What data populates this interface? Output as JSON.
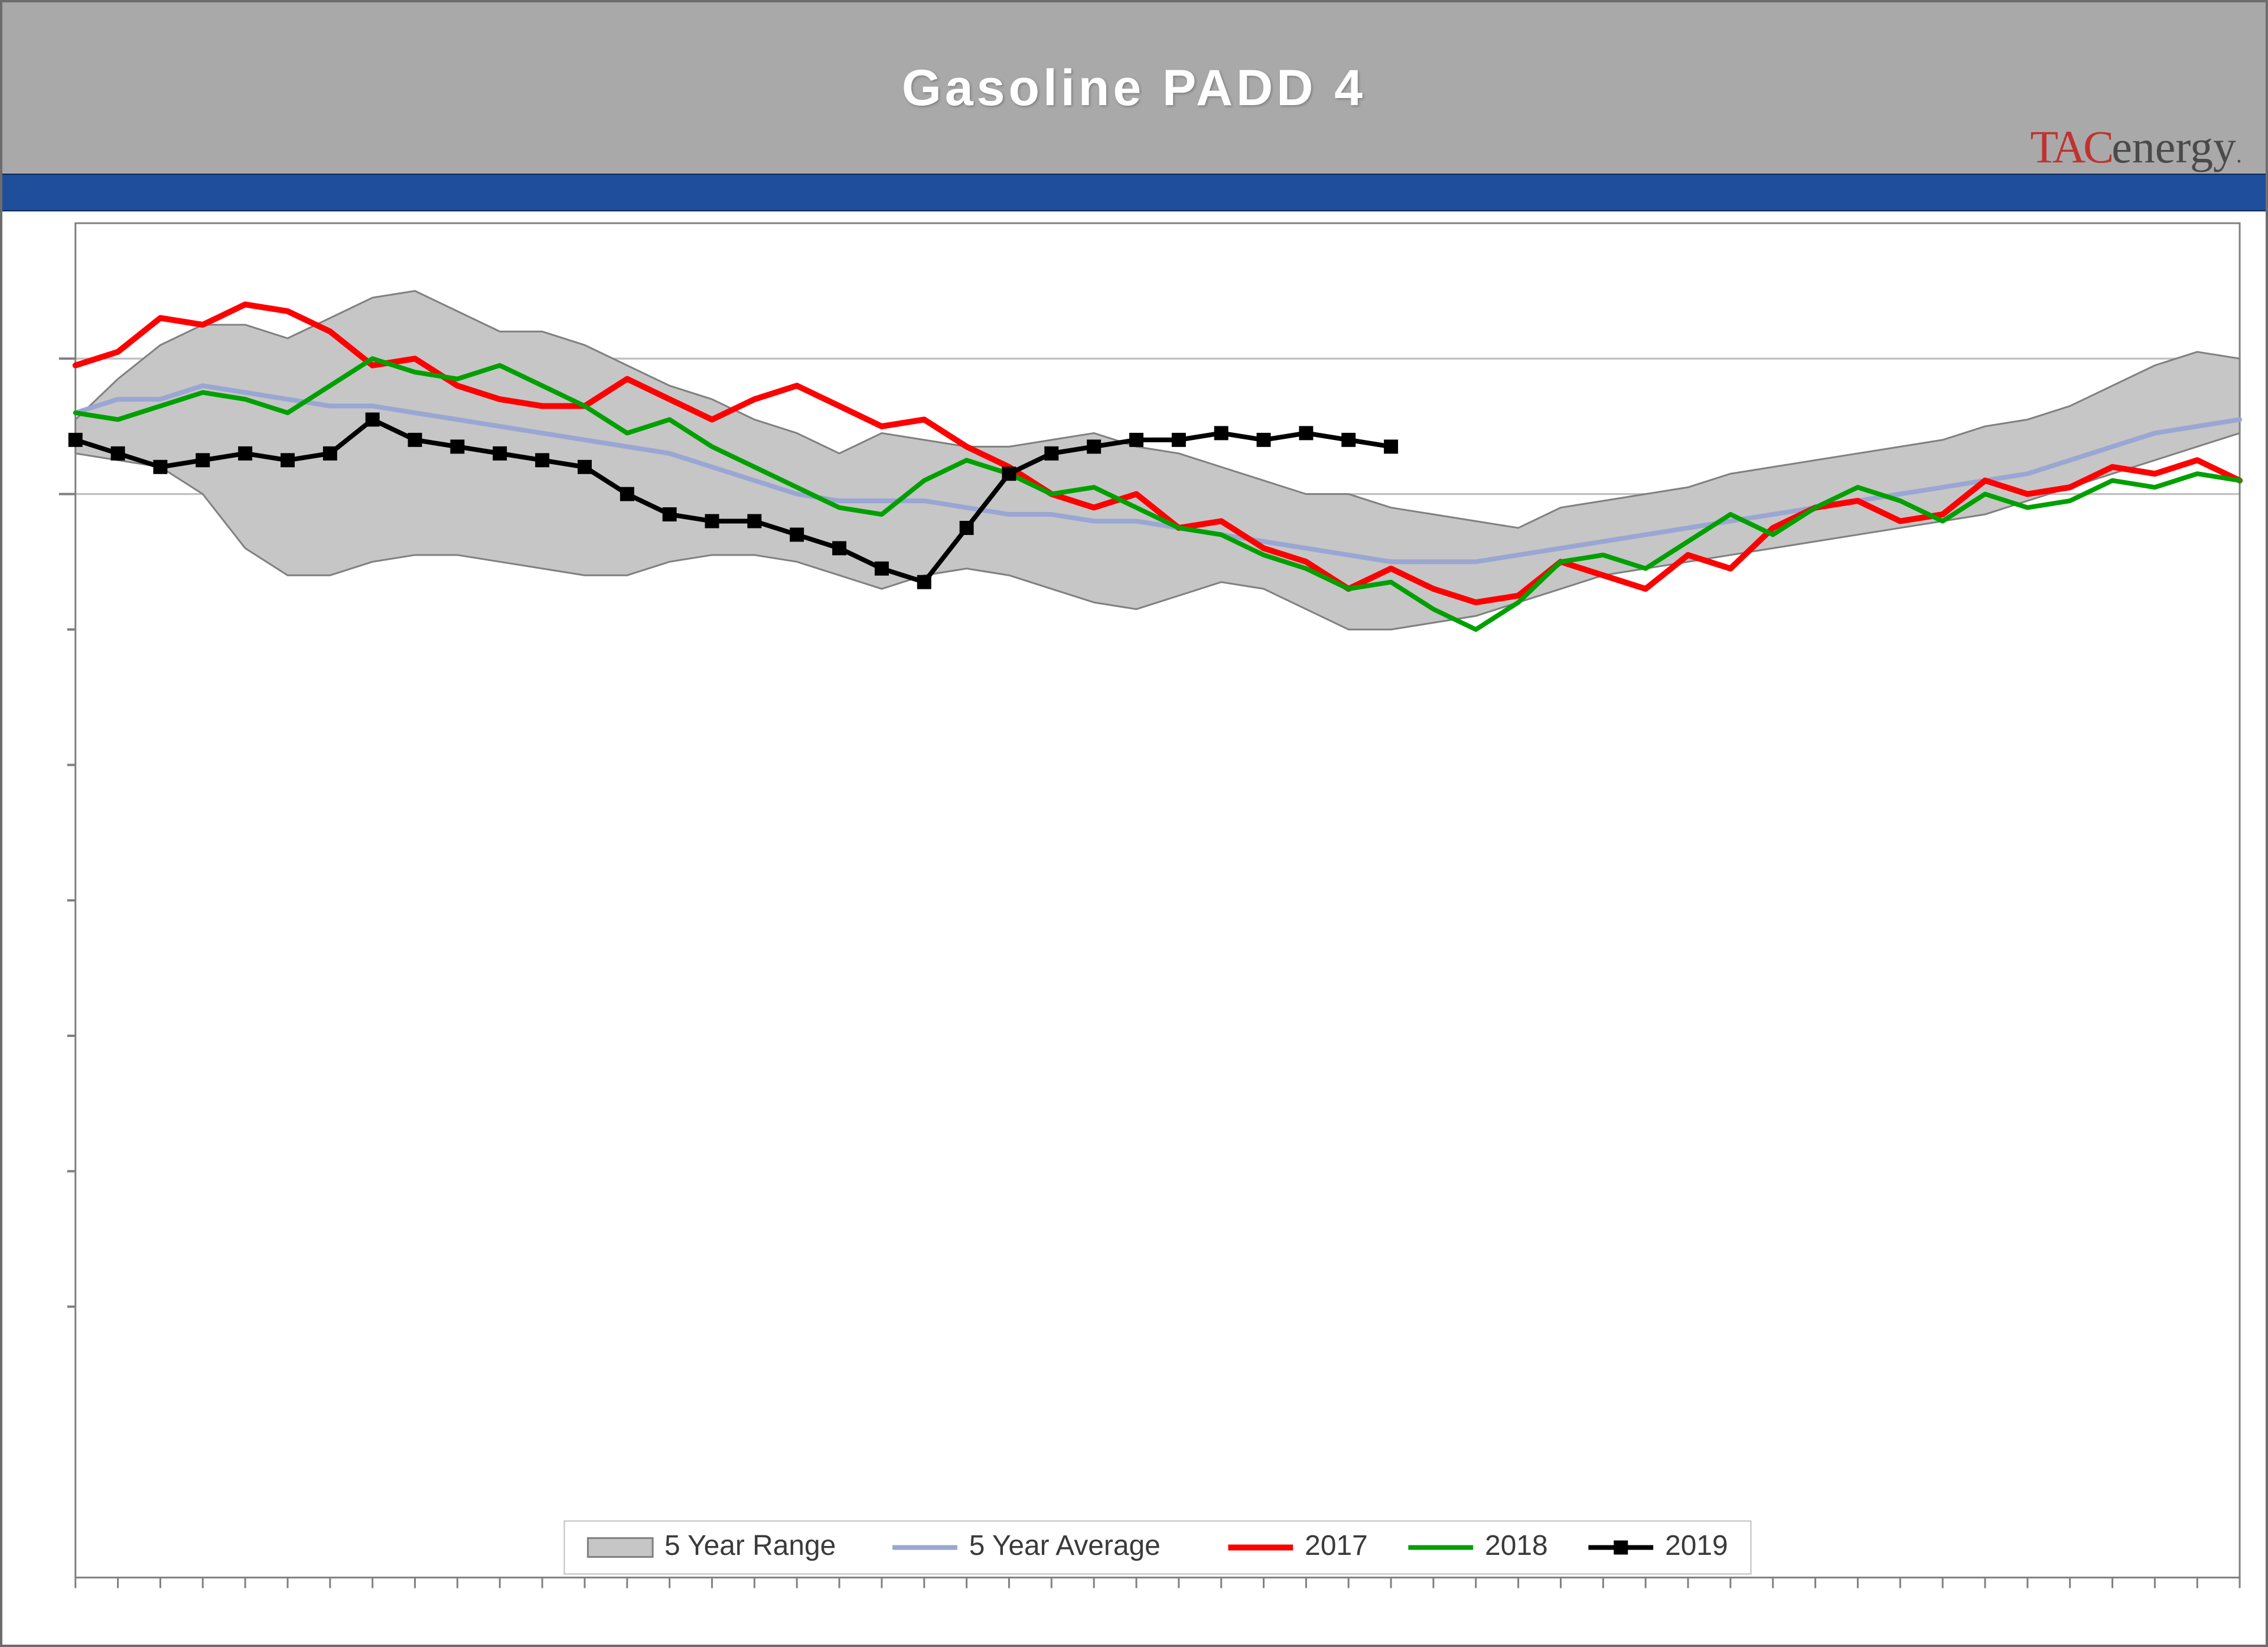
{
  "title": "Gasoline PADD 4",
  "brand": {
    "tac": "TAC",
    "energy": "energy"
  },
  "chart": {
    "type": "line",
    "x_count": 52,
    "ylim": [
      0,
      10
    ],
    "gridlines_y": [
      2,
      3,
      4,
      5,
      6,
      7,
      8,
      9
    ],
    "major_gridlines_y": [
      8,
      9
    ],
    "background_color": "#ffffff",
    "grid_color": "#bfbfbf",
    "major_grid_color": "#bfbfbf",
    "axis_color": "#808080",
    "tick_color": "#808080",
    "tick_len_major": 28,
    "tick_len_minor": 14,
    "range": {
      "name": "5 Year Range",
      "fill": "#c6c6c6",
      "stroke": "#808080",
      "stroke_width": 3,
      "upper": [
        8.55,
        8.85,
        9.1,
        9.25,
        9.25,
        9.15,
        9.3,
        9.45,
        9.5,
        9.35,
        9.2,
        9.2,
        9.1,
        8.95,
        8.8,
        8.7,
        8.55,
        8.45,
        8.3,
        8.45,
        8.4,
        8.35,
        8.35,
        8.4,
        8.45,
        8.35,
        8.3,
        8.2,
        8.1,
        8.0,
        8.0,
        7.9,
        7.85,
        7.8,
        7.75,
        7.9,
        7.95,
        8.0,
        8.05,
        8.15,
        8.2,
        8.25,
        8.3,
        8.35,
        8.4,
        8.5,
        8.55,
        8.65,
        8.8,
        8.95,
        9.05,
        9.0
      ],
      "lower": [
        8.3,
        8.25,
        8.2,
        8.0,
        7.6,
        7.4,
        7.4,
        7.5,
        7.55,
        7.55,
        7.5,
        7.45,
        7.4,
        7.4,
        7.5,
        7.55,
        7.55,
        7.5,
        7.4,
        7.3,
        7.4,
        7.45,
        7.4,
        7.3,
        7.2,
        7.15,
        7.25,
        7.35,
        7.3,
        7.15,
        7.0,
        7.0,
        7.05,
        7.1,
        7.2,
        7.3,
        7.4,
        7.45,
        7.5,
        7.55,
        7.6,
        7.65,
        7.7,
        7.75,
        7.8,
        7.85,
        7.95,
        8.05,
        8.15,
        8.25,
        8.35,
        8.45
      ]
    },
    "series": [
      {
        "name": "5 Year Average",
        "color": "#9aa6d3",
        "width": 8,
        "marker": null,
        "values": [
          8.6,
          8.7,
          8.7,
          8.8,
          8.75,
          8.7,
          8.65,
          8.65,
          8.6,
          8.55,
          8.5,
          8.45,
          8.4,
          8.35,
          8.3,
          8.2,
          8.1,
          8.0,
          7.95,
          7.95,
          7.95,
          7.9,
          7.85,
          7.85,
          7.8,
          7.8,
          7.75,
          7.7,
          7.65,
          7.6,
          7.55,
          7.5,
          7.5,
          7.5,
          7.55,
          7.6,
          7.65,
          7.7,
          7.75,
          7.8,
          7.85,
          7.9,
          7.95,
          8.0,
          8.05,
          8.1,
          8.15,
          8.25,
          8.35,
          8.45,
          8.5,
          8.55
        ]
      },
      {
        "name": "2017",
        "color": "#ff0000",
        "width": 10,
        "marker": null,
        "values": [
          8.95,
          9.05,
          9.3,
          9.25,
          9.4,
          9.35,
          9.2,
          8.95,
          9.0,
          8.8,
          8.7,
          8.65,
          8.65,
          8.85,
          8.7,
          8.55,
          8.7,
          8.8,
          8.65,
          8.5,
          8.55,
          8.35,
          8.2,
          8.0,
          7.9,
          8.0,
          7.75,
          7.8,
          7.6,
          7.5,
          7.3,
          7.45,
          7.3,
          7.2,
          7.25,
          7.5,
          7.4,
          7.3,
          7.55,
          7.45,
          7.75,
          7.9,
          7.95,
          7.8,
          7.85,
          8.1,
          8.0,
          8.05,
          8.2,
          8.15,
          8.25,
          8.1
        ]
      },
      {
        "name": "2018",
        "color": "#00a000",
        "width": 8,
        "marker": null,
        "values": [
          8.6,
          8.55,
          8.65,
          8.75,
          8.7,
          8.6,
          8.8,
          9.0,
          8.9,
          8.85,
          8.95,
          8.8,
          8.65,
          8.45,
          8.55,
          8.35,
          8.2,
          8.05,
          7.9,
          7.85,
          8.1,
          8.25,
          8.15,
          8.0,
          8.05,
          7.9,
          7.75,
          7.7,
          7.55,
          7.45,
          7.3,
          7.35,
          7.15,
          7.0,
          7.2,
          7.5,
          7.55,
          7.45,
          7.65,
          7.85,
          7.7,
          7.9,
          8.05,
          7.95,
          7.8,
          8.0,
          7.9,
          7.95,
          8.1,
          8.05,
          8.15,
          8.1
        ]
      },
      {
        "name": "2019",
        "color": "#000000",
        "width": 8,
        "marker": "square",
        "marker_size": 12,
        "values": [
          8.4,
          8.3,
          8.2,
          8.25,
          8.3,
          8.25,
          8.3,
          8.55,
          8.4,
          8.35,
          8.3,
          8.25,
          8.2,
          8.0,
          7.85,
          7.8,
          7.8,
          7.7,
          7.6,
          7.45,
          7.35,
          7.75,
          8.15,
          8.3,
          8.35,
          8.4,
          8.4,
          8.45,
          8.4,
          8.45,
          8.4,
          8.35
        ]
      }
    ],
    "legend": {
      "items": [
        {
          "kind": "range",
          "label": "5 Year Range"
        },
        {
          "kind": "line",
          "label": "5 Year Average",
          "series": 0
        },
        {
          "kind": "line",
          "label": "2017",
          "series": 1
        },
        {
          "kind": "line",
          "label": "2018",
          "series": 2
        },
        {
          "kind": "marker",
          "label": "2019",
          "series": 3
        }
      ],
      "font_size": 48,
      "text_color": "#3a3a3a"
    }
  }
}
